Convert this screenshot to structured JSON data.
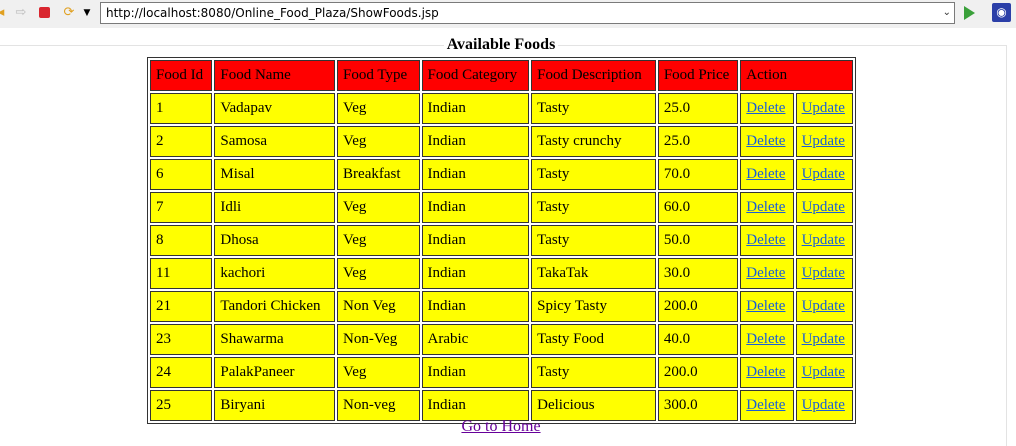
{
  "browser": {
    "url": "http://localhost:8080/Online_Food_Plaza/ShowFoods.jsp"
  },
  "page": {
    "title": "Available Foods",
    "home_link": "Go to Home"
  },
  "table": {
    "headers": [
      "Food Id",
      "Food Name",
      "Food Type",
      "Food Category",
      "Food Description",
      "Food Price",
      "Action"
    ],
    "delete_label": "Delete",
    "update_label": "Update",
    "rows": [
      [
        "1",
        "Vadapav",
        "Veg",
        "Indian",
        "Tasty",
        "25.0"
      ],
      [
        "2",
        "Samosa",
        "Veg",
        "Indian",
        "Tasty crunchy",
        "25.0"
      ],
      [
        "6",
        "Misal",
        "Breakfast",
        "Indian",
        "Tasty",
        "70.0"
      ],
      [
        "7",
        "Idli",
        "Veg",
        "Indian",
        "Tasty",
        "60.0"
      ],
      [
        "8",
        "Dhosa",
        "Veg",
        "Indian",
        "Tasty",
        "50.0"
      ],
      [
        "11",
        "kachori",
        "Veg",
        "Indian",
        "TakaTak",
        "30.0"
      ],
      [
        "21",
        "Tandori Chicken",
        "Non Veg",
        "Indian",
        "Spicy Tasty",
        "200.0"
      ],
      [
        "23",
        "Shawarma",
        "Non-Veg",
        "Arabic",
        "Tasty Food",
        "40.0"
      ],
      [
        "24",
        "PalakPaneer",
        "Veg",
        "Indian",
        "Tasty",
        "200.0"
      ],
      [
        "25",
        "Biryani",
        "Non-veg",
        "Indian",
        "Delicious",
        "300.0"
      ]
    ]
  },
  "colors": {
    "header_bg": "#ff0000",
    "cell_bg": "#ffff00",
    "link": "#1a5fd6"
  }
}
